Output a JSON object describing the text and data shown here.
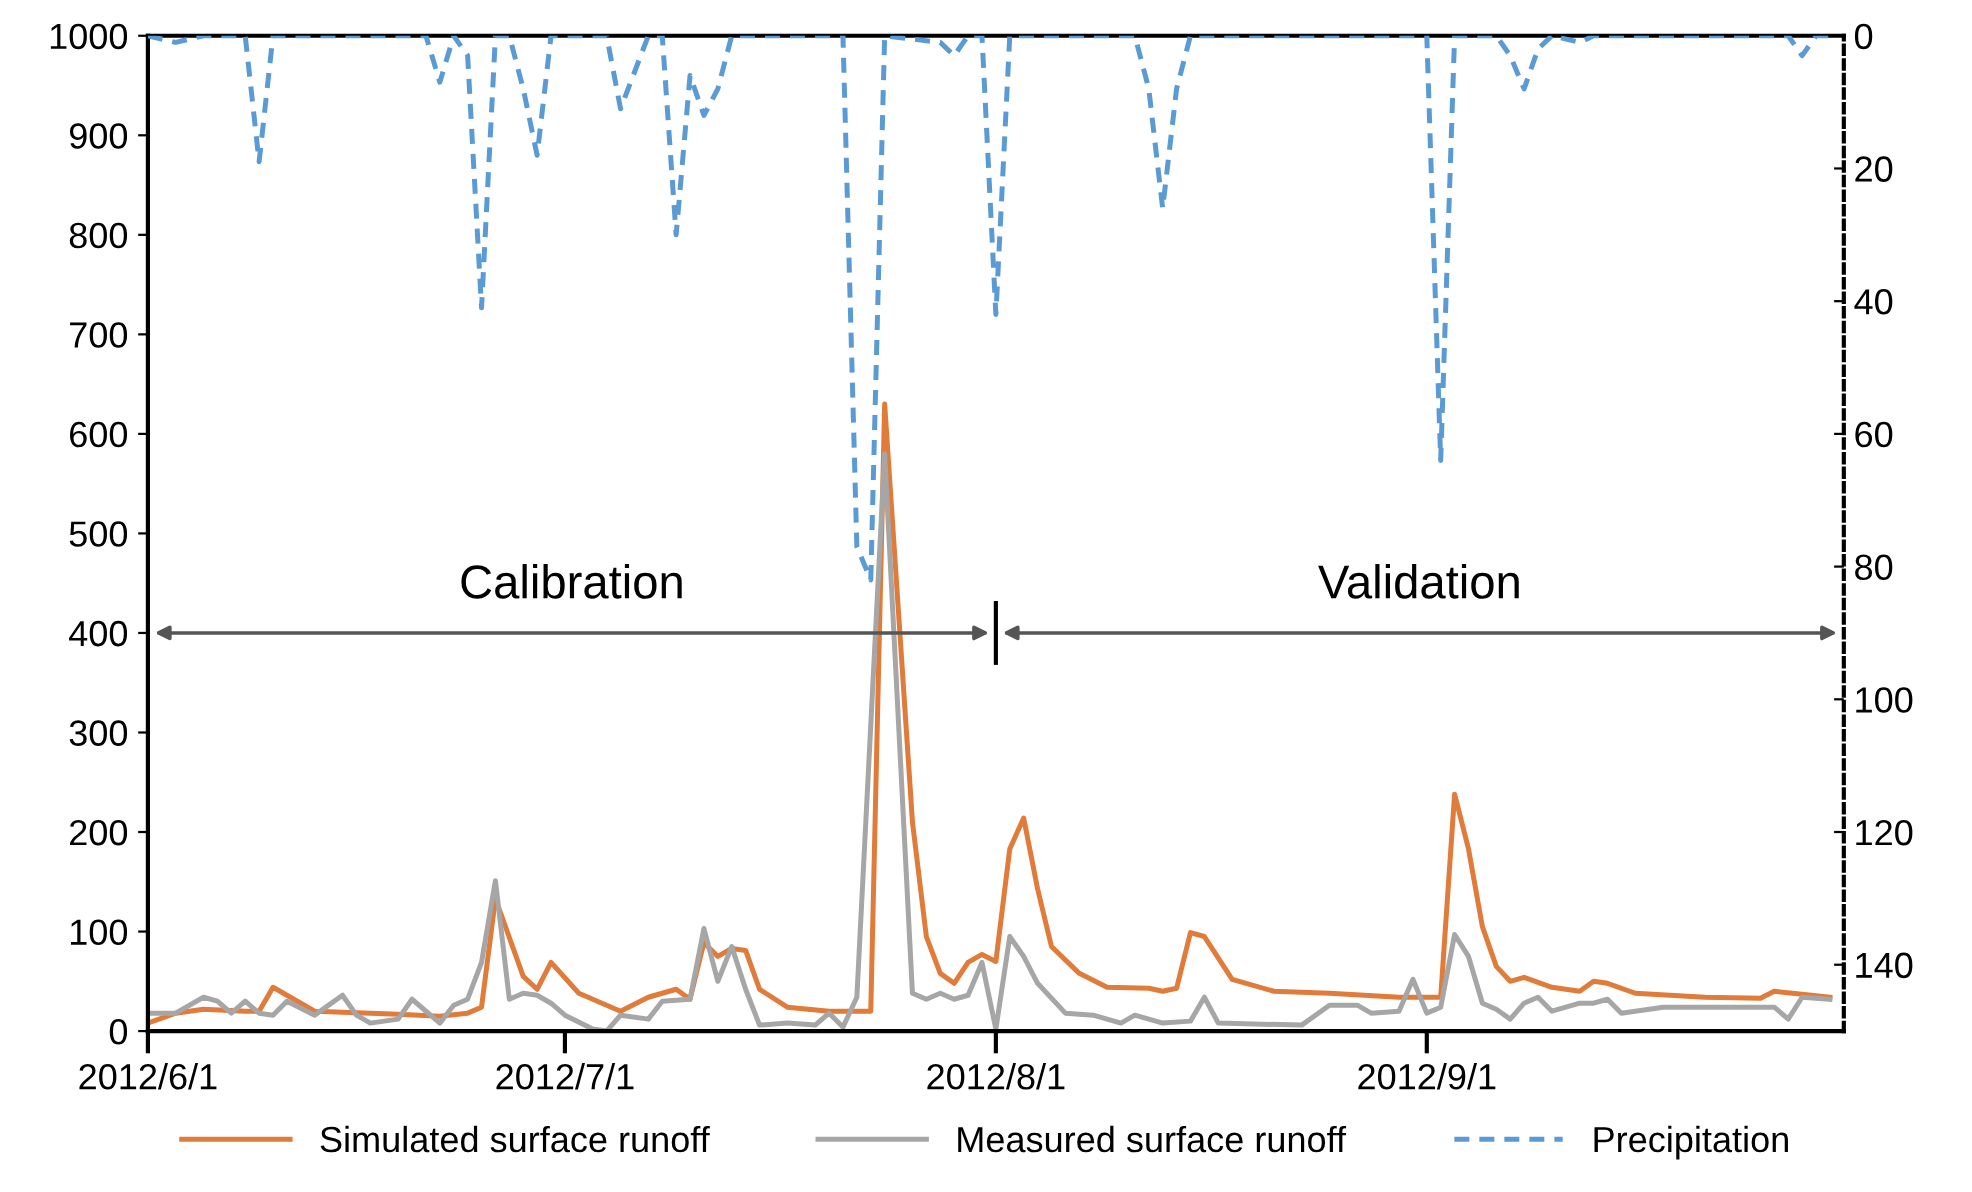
{
  "chart_data": {
    "type": "line",
    "xlim": [
      "2012-06-01",
      "2012-10-01"
    ],
    "xticks": [
      {
        "value": "2012-06-01",
        "label": "2012/6/1"
      },
      {
        "value": "2012-07-01",
        "label": "2012/7/1"
      },
      {
        "value": "2012-08-01",
        "label": "2012/8/1"
      },
      {
        "value": "2012-09-01",
        "label": "2012/9/1"
      }
    ],
    "ylim": [
      0,
      1000
    ],
    "yticks": [
      0,
      100,
      200,
      300,
      400,
      500,
      600,
      700,
      800,
      900,
      1000
    ],
    "y2lim": [
      150,
      0
    ],
    "y2ticks": [
      0,
      20,
      40,
      60,
      80,
      100,
      120,
      140
    ],
    "grid": false,
    "legend": "bottom",
    "annotations": [
      "Calibration",
      "Validation"
    ],
    "series": [
      {
        "name": "Simulated surface runoff",
        "color": "#e07b39",
        "line_style": "solid",
        "x": [
          "2012-06-01",
          "2012-06-03",
          "2012-06-05",
          "2012-06-08",
          "2012-06-09",
          "2012-06-10",
          "2012-06-12",
          "2012-06-13",
          "2012-06-19",
          "2012-06-22",
          "2012-06-24",
          "2012-06-25",
          "2012-06-26",
          "2012-06-28",
          "2012-06-29",
          "2012-06-30",
          "2012-07-02",
          "2012-07-05",
          "2012-07-07",
          "2012-07-09",
          "2012-07-10",
          "2012-07-11",
          "2012-07-12",
          "2012-07-13",
          "2012-07-14",
          "2012-07-15",
          "2012-07-17",
          "2012-07-20",
          "2012-07-23",
          "2012-07-24",
          "2012-07-26",
          "2012-07-27",
          "2012-07-28",
          "2012-07-29",
          "2012-07-30",
          "2012-07-31",
          "2012-08-01",
          "2012-08-02",
          "2012-08-03",
          "2012-08-04",
          "2012-08-05",
          "2012-08-07",
          "2012-08-09",
          "2012-08-12",
          "2012-08-13",
          "2012-08-14",
          "2012-08-15",
          "2012-08-16",
          "2012-08-18",
          "2012-08-21",
          "2012-08-25",
          "2012-08-30",
          "2012-09-02",
          "2012-09-03",
          "2012-09-04",
          "2012-09-05",
          "2012-09-06",
          "2012-09-07",
          "2012-09-08",
          "2012-09-10",
          "2012-09-12",
          "2012-09-13",
          "2012-09-14",
          "2012-09-16",
          "2012-09-21",
          "2012-09-25",
          "2012-09-26",
          "2012-09-28",
          "2012-09-30"
        ],
        "values": [
          8,
          18,
          22,
          20,
          20,
          44,
          28,
          20,
          17,
          15,
          18,
          24,
          133,
          55,
          42,
          69,
          38,
          20,
          34,
          42,
          32,
          89,
          75,
          83,
          81,
          42,
          24,
          20,
          20,
          630,
          210,
          95,
          58,
          48,
          69,
          77,
          70,
          183,
          214,
          143,
          85,
          58,
          44,
          43,
          40,
          43,
          99,
          95,
          52,
          40,
          38,
          34,
          34,
          238,
          183,
          105,
          65,
          50,
          54,
          44,
          40,
          50,
          48,
          38,
          34,
          33,
          40,
          37,
          34
        ]
      },
      {
        "name": "Measured surface runoff",
        "color": "#a6a6a6",
        "line_style": "solid",
        "x": [
          "2012-06-01",
          "2012-06-03",
          "2012-06-05",
          "2012-06-06",
          "2012-06-07",
          "2012-06-08",
          "2012-06-09",
          "2012-06-10",
          "2012-06-11",
          "2012-06-13",
          "2012-06-15",
          "2012-06-16",
          "2012-06-17",
          "2012-06-19",
          "2012-06-20",
          "2012-06-22",
          "2012-06-23",
          "2012-06-24",
          "2012-06-25",
          "2012-06-26",
          "2012-06-27",
          "2012-06-28",
          "2012-06-29",
          "2012-06-30",
          "2012-07-01",
          "2012-07-03",
          "2012-07-04",
          "2012-07-05",
          "2012-07-07",
          "2012-07-08",
          "2012-07-10",
          "2012-07-11",
          "2012-07-12",
          "2012-07-13",
          "2012-07-14",
          "2012-07-15",
          "2012-07-17",
          "2012-07-19",
          "2012-07-20",
          "2012-07-21",
          "2012-07-22",
          "2012-07-24",
          "2012-07-26",
          "2012-07-27",
          "2012-07-28",
          "2012-07-29",
          "2012-07-30",
          "2012-07-31",
          "2012-08-01",
          "2012-08-02",
          "2012-08-03",
          "2012-08-04",
          "2012-08-06",
          "2012-08-08",
          "2012-08-10",
          "2012-08-11",
          "2012-08-13",
          "2012-08-15",
          "2012-08-16",
          "2012-08-17",
          "2012-08-23",
          "2012-08-25",
          "2012-08-27",
          "2012-08-28",
          "2012-08-30",
          "2012-08-31",
          "2012-09-01",
          "2012-09-02",
          "2012-09-03",
          "2012-09-04",
          "2012-09-05",
          "2012-09-06",
          "2012-09-07",
          "2012-09-08",
          "2012-09-09",
          "2012-09-10",
          "2012-09-12",
          "2012-09-13",
          "2012-09-14",
          "2012-09-15",
          "2012-09-18",
          "2012-09-26",
          "2012-09-27",
          "2012-09-28",
          "2012-09-30"
        ],
        "values": [
          18,
          18,
          34,
          30,
          18,
          30,
          18,
          16,
          30,
          16,
          36,
          16,
          8,
          12,
          32,
          8,
          26,
          32,
          69,
          151,
          32,
          38,
          36,
          28,
          16,
          2,
          0,
          16,
          12,
          30,
          32,
          103,
          50,
          85,
          42,
          6,
          8,
          6,
          18,
          4,
          34,
          580,
          38,
          32,
          38,
          32,
          36,
          69,
          2,
          95,
          75,
          48,
          18,
          16,
          8,
          16,
          8,
          10,
          34,
          8,
          6,
          26,
          26,
          18,
          20,
          52,
          18,
          24,
          97,
          75,
          28,
          22,
          12,
          28,
          34,
          20,
          28,
          28,
          32,
          18,
          24,
          24,
          12,
          34,
          32
        ]
      },
      {
        "name": "Precipitation",
        "color": "#5b9bd5",
        "line_style": "dashed",
        "axis": "y2",
        "x": [
          "2012-06-01",
          "2012-06-03",
          "2012-06-05",
          "2012-06-08",
          "2012-06-09",
          "2012-06-10",
          "2012-06-21",
          "2012-06-22",
          "2012-06-23",
          "2012-06-24",
          "2012-06-25",
          "2012-06-26",
          "2012-06-27",
          "2012-06-28",
          "2012-06-29",
          "2012-06-30",
          "2012-07-04",
          "2012-07-05",
          "2012-07-07",
          "2012-07-08",
          "2012-07-09",
          "2012-07-10",
          "2012-07-11",
          "2012-07-12",
          "2012-07-13",
          "2012-07-21",
          "2012-07-22",
          "2012-07-23",
          "2012-07-24",
          "2012-07-28",
          "2012-07-29",
          "2012-07-30",
          "2012-07-31",
          "2012-08-01",
          "2012-08-02",
          "2012-08-11",
          "2012-08-12",
          "2012-08-13",
          "2012-08-14",
          "2012-08-15",
          "2012-09-01",
          "2012-09-02",
          "2012-09-03",
          "2012-09-06",
          "2012-09-07",
          "2012-09-08",
          "2012-09-09",
          "2012-09-10",
          "2012-09-12",
          "2012-09-13",
          "2012-09-27",
          "2012-09-28",
          "2012-09-29",
          "2012-09-30"
        ],
        "values": [
          0,
          1,
          0,
          0,
          19,
          0,
          0,
          7,
          0,
          3,
          41,
          0,
          0,
          8,
          18,
          0,
          0,
          11,
          0,
          0,
          30,
          6,
          12,
          8,
          0,
          0,
          77,
          82,
          0,
          1,
          3,
          0,
          0,
          42,
          0,
          0,
          8,
          26,
          8,
          0,
          0,
          64,
          0,
          0,
          3,
          8,
          2,
          0,
          1,
          0,
          0,
          3,
          0,
          0
        ]
      }
    ]
  }
}
